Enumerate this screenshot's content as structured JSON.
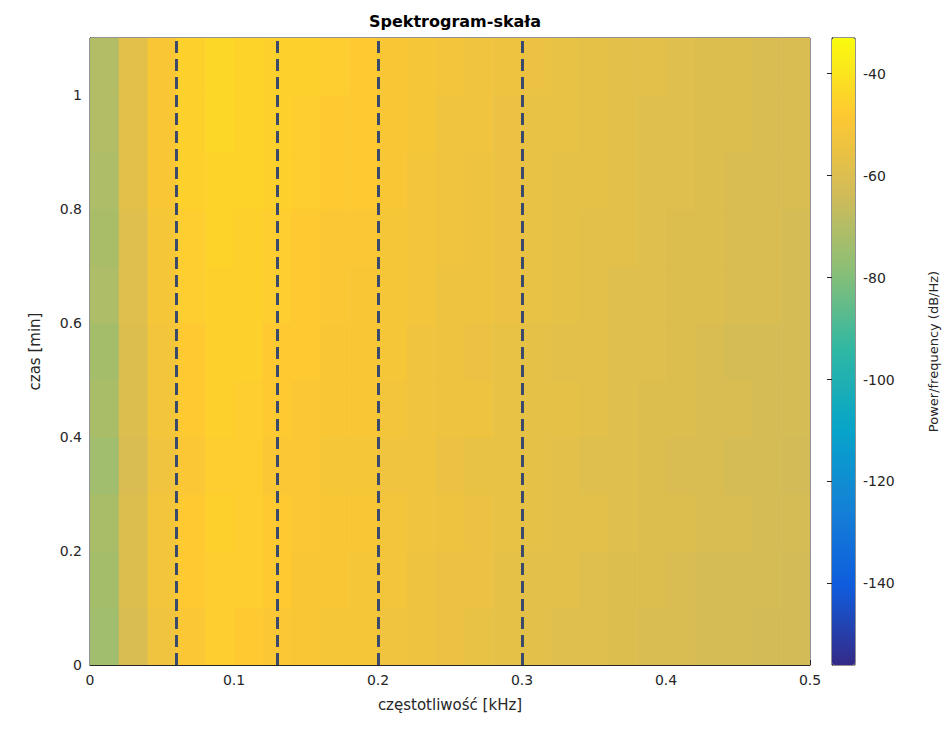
{
  "chart_data": {
    "type": "heatmap",
    "title": "Spektrogram-skała",
    "x_label": "częstotliwość [kHz]",
    "y_label": "czas [min]",
    "xlim": [
      0,
      0.5
    ],
    "xticks": [
      0,
      0.1,
      0.2,
      0.3,
      0.4,
      0.5
    ],
    "ylim": [
      0,
      1.1
    ],
    "yticks": [
      0,
      0.2,
      0.4,
      0.6,
      0.8,
      1
    ],
    "color": "parula",
    "cell_x_edges": [
      0,
      0.02,
      0.04,
      0.06,
      0.08,
      0.1,
      0.12,
      0.14,
      0.16,
      0.18,
      0.2,
      0.22,
      0.24,
      0.26,
      0.28,
      0.3,
      0.32,
      0.34,
      0.36,
      0.38,
      0.4,
      0.42,
      0.44,
      0.46,
      0.48,
      0.5
    ],
    "cell_y_edges": [
      0,
      0.1,
      0.2,
      0.3,
      0.4,
      0.5,
      0.6,
      0.7,
      0.8,
      0.9,
      1,
      1.1
    ],
    "cells": [
      [
        -74,
        -61,
        -53,
        -49,
        -47,
        -48,
        -49,
        -50,
        -51,
        -51,
        -53,
        -54,
        -55,
        -56,
        -57,
        -58,
        -59,
        -59,
        -60,
        -61,
        -61,
        -62,
        -62,
        -63,
        -63
      ],
      [
        -73,
        -60,
        -52,
        -48,
        -47,
        -47,
        -48,
        -50,
        -50,
        -51,
        -52,
        -54,
        -55,
        -55,
        -57,
        -58,
        -58,
        -59,
        -60,
        -60,
        -61,
        -62,
        -62,
        -62,
        -63
      ],
      [
        -72,
        -60,
        -52,
        -48,
        -46,
        -47,
        -48,
        -49,
        -50,
        -50,
        -52,
        -53,
        -54,
        -55,
        -56,
        -57,
        -58,
        -58,
        -59,
        -60,
        -60,
        -61,
        -61,
        -62,
        -62
      ],
      [
        -74,
        -61,
        -53,
        -49,
        -47,
        -47,
        -49,
        -49,
        -51,
        -51,
        -53,
        -53,
        -55,
        -56,
        -56,
        -57,
        -58,
        -59,
        -59,
        -60,
        -61,
        -61,
        -62,
        -62,
        -63
      ],
      [
        -72,
        -60,
        -52,
        -48,
        -46,
        -47,
        -48,
        -49,
        -50,
        -50,
        -52,
        -53,
        -54,
        -54,
        -56,
        -57,
        -57,
        -58,
        -59,
        -60,
        -60,
        -61,
        -61,
        -62,
        -62
      ],
      [
        -73,
        -60,
        -52,
        -48,
        -46,
        -46,
        -48,
        -48,
        -50,
        -50,
        -51,
        -53,
        -54,
        -55,
        -56,
        -57,
        -58,
        -58,
        -59,
        -59,
        -60,
        -61,
        -62,
        -62,
        -62
      ],
      [
        -71,
        -59,
        -51,
        -47,
        -46,
        -46,
        -47,
        -48,
        -49,
        -50,
        -51,
        -52,
        -54,
        -54,
        -55,
        -56,
        -57,
        -58,
        -59,
        -59,
        -60,
        -60,
        -61,
        -61,
        -62
      ],
      [
        -72,
        -59,
        -51,
        -47,
        -45,
        -46,
        -47,
        -48,
        -49,
        -49,
        -51,
        -52,
        -53,
        -54,
        -55,
        -56,
        -57,
        -58,
        -58,
        -59,
        -60,
        -60,
        -61,
        -61,
        -62
      ],
      [
        -71,
        -58,
        -50,
        -46,
        -45,
        -45,
        -46,
        -47,
        -48,
        -48,
        -50,
        -52,
        -53,
        -54,
        -55,
        -56,
        -57,
        -57,
        -58,
        -59,
        -59,
        -60,
        -61,
        -61,
        -61
      ],
      [
        -70,
        -58,
        -50,
        -46,
        -44,
        -45,
        -46,
        -47,
        -48,
        -48,
        -50,
        -51,
        -53,
        -53,
        -55,
        -56,
        -56,
        -57,
        -58,
        -59,
        -59,
        -60,
        -60,
        -61,
        -61
      ],
      [
        -70,
        -58,
        -50,
        -46,
        -44,
        -45,
        -46,
        -46,
        -47,
        -48,
        -50,
        -51,
        -52,
        -53,
        -54,
        -55,
        -56,
        -57,
        -58,
        -58,
        -59,
        -60,
        -60,
        -61,
        -61
      ]
    ],
    "colorbar": {
      "label": "Power/frequency (dB/Hz)",
      "lim": [
        -156,
        -33
      ],
      "ticks": [
        -140,
        -120,
        -100,
        -80,
        -60,
        -40
      ]
    },
    "vertical_lines": [
      0.062,
      0.125,
      0.2,
      0.298
    ]
  }
}
